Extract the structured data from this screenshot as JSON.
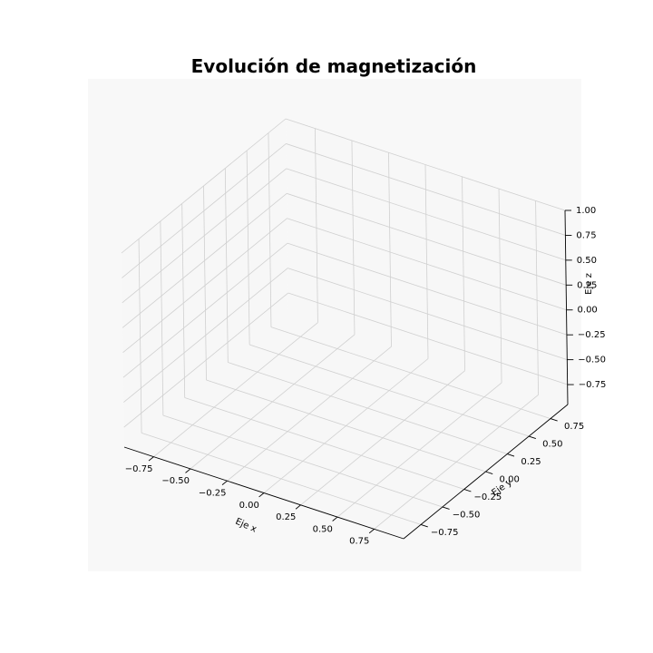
{
  "chart_data": {
    "type": "scatter",
    "projection": "3d",
    "title": "Evolución de magnetización",
    "xlabel": "Eje x",
    "ylabel": "Eje y",
    "zlabel": "Eje z",
    "xlim": [
      -0.95,
      0.95
    ],
    "ylim": [
      -0.95,
      0.95
    ],
    "zlim": [
      -0.95,
      1.0
    ],
    "xticks": [
      "−0.75",
      "−0.50",
      "−0.25",
      "0.00",
      "0.25",
      "0.50",
      "0.75"
    ],
    "yticks": [
      "−0.75",
      "−0.50",
      "−0.25",
      "0.00",
      "0.25",
      "0.50",
      "0.75"
    ],
    "zticks": [
      "−0.75",
      "−0.50",
      "−0.25",
      "0.00",
      "0.25",
      "0.50",
      "0.75",
      "1.00"
    ],
    "grid": true,
    "series": [],
    "colors": {
      "pane": "#f7f7f7",
      "grid": "#d0d0d0",
      "axis": "#000000"
    }
  }
}
